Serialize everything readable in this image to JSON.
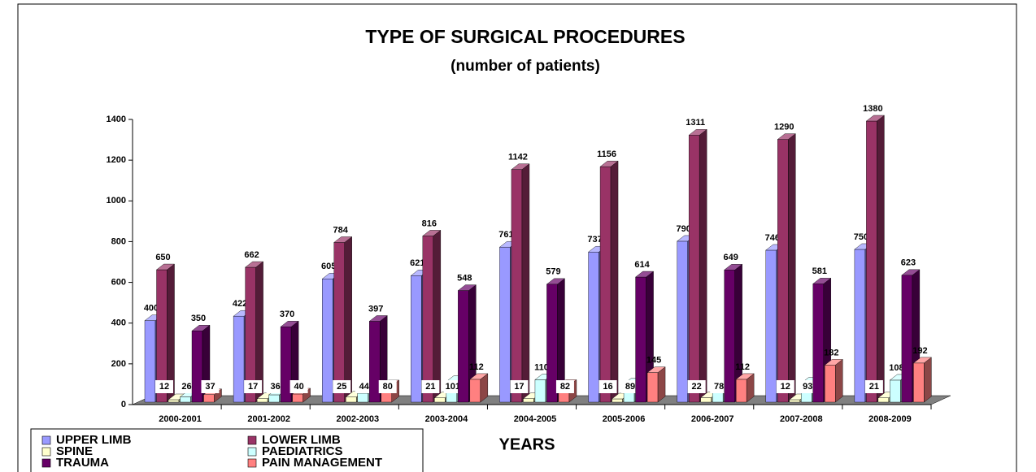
{
  "chart_data": {
    "type": "bar3d",
    "title": "TYPE OF SURGICAL PROCEDURES",
    "subtitle": "(number of patients)",
    "x_label": "YEARS",
    "categories": [
      "2000-2001",
      "2001-2002",
      "2002-2003",
      "2003-2004",
      "2004-2005",
      "2005-2006",
      "2006-2007",
      "2007-2008",
      "2008-2009"
    ],
    "series": [
      {
        "name": "UPPER LIMB",
        "color": "#9999ff",
        "values": [
          400,
          422,
          605,
          621,
          761,
          737,
          790,
          746,
          750
        ]
      },
      {
        "name": "LOWER LIMB",
        "color": "#993366",
        "values": [
          650,
          662,
          784,
          816,
          1142,
          1156,
          1311,
          1290,
          1380
        ]
      },
      {
        "name": "SPINE",
        "color": "#ffffcc",
        "values": [
          12,
          17,
          25,
          21,
          17,
          16,
          22,
          12,
          21
        ]
      },
      {
        "name": "PAEDIATRICS",
        "color": "#ccffff",
        "values": [
          26,
          36,
          44,
          101,
          110,
          89,
          78,
          93,
          108
        ]
      },
      {
        "name": "TRAUMA",
        "color": "#660066",
        "values": [
          350,
          370,
          397,
          548,
          579,
          614,
          649,
          581,
          623
        ]
      },
      {
        "name": "PAIN MANAGEMENT",
        "color": "#ff8080",
        "values": [
          37,
          40,
          80,
          112,
          82,
          145,
          112,
          182,
          192
        ]
      }
    ],
    "ylim": [
      0,
      1400
    ],
    "yticks": [
      0,
      200,
      400,
      600,
      800,
      1000,
      1200,
      1400
    ],
    "grid": false,
    "legend": "bottom-left"
  }
}
